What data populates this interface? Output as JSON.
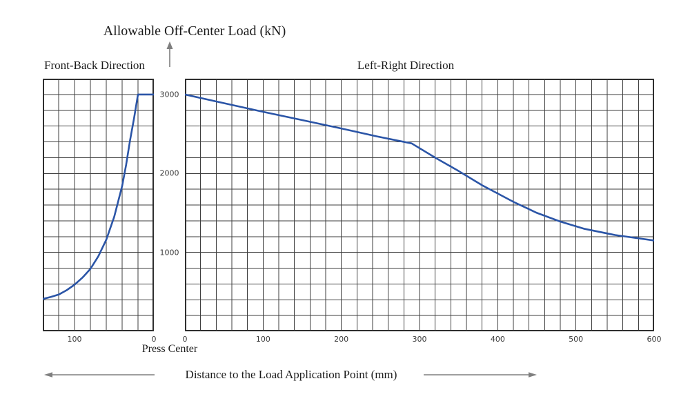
{
  "title": "Allowable Off-Center Load (kN)",
  "labels": {
    "press_center": "Press Center",
    "x_axis_title": "Distance to the Load Application Point (mm)"
  },
  "colors": {
    "curve": "#2b55a7",
    "grid": "#3e3e3e",
    "frame": "#2f2f2f",
    "arrow": "#7f7f7f",
    "text": "#1b1b1b",
    "tick_text": "#3a3a3a",
    "background": "#ffffff"
  },
  "chart_data": [
    {
      "type": "line",
      "name": "front-back-direction",
      "title": "Front-Back Direction",
      "xlabel": "Distance to the Load Application Point (mm)",
      "ylabel": "Allowable Off-Center Load (kN)",
      "x_direction": "reversed",
      "xlim": [
        0,
        140
      ],
      "ylim": [
        0,
        3200
      ],
      "grid_cells": {
        "cols": 7,
        "rows": 16
      },
      "x_ticks": [
        100,
        0
      ],
      "series": [
        {
          "name": "allowable-load",
          "points": [
            [
              140,
              410
            ],
            [
              130,
              435
            ],
            [
              120,
              465
            ],
            [
              110,
              520
            ],
            [
              100,
              590
            ],
            [
              90,
              680
            ],
            [
              80,
              790
            ],
            [
              70,
              950
            ],
            [
              60,
              1160
            ],
            [
              50,
              1450
            ],
            [
              40,
              1840
            ],
            [
              35,
              2110
            ],
            [
              30,
              2420
            ],
            [
              25,
              2700
            ],
            [
              22,
              2880
            ],
            [
              20,
              3000
            ],
            [
              0,
              3000
            ]
          ]
        }
      ]
    },
    {
      "type": "line",
      "name": "left-right-direction",
      "title": "Left-Right Direction",
      "xlabel": "Distance to the Load Application Point (mm)",
      "ylabel": "Allowable Off-Center Load (kN)",
      "x_direction": "normal",
      "xlim": [
        0,
        600
      ],
      "ylim": [
        0,
        3200
      ],
      "grid_cells": {
        "cols": 30,
        "rows": 16
      },
      "x_ticks": [
        0,
        100,
        200,
        300,
        400,
        500,
        600
      ],
      "y_ticks": [
        3000,
        2000,
        1000
      ],
      "series": [
        {
          "name": "allowable-load",
          "points": [
            [
              0,
              3000
            ],
            [
              50,
              2890
            ],
            [
              100,
              2780
            ],
            [
              150,
              2675
            ],
            [
              200,
              2570
            ],
            [
              245,
              2470
            ],
            [
              290,
              2380
            ],
            [
              320,
              2200
            ],
            [
              350,
              2030
            ],
            [
              380,
              1850
            ],
            [
              420,
              1640
            ],
            [
              450,
              1500
            ],
            [
              480,
              1390
            ],
            [
              510,
              1300
            ],
            [
              550,
              1220
            ],
            [
              600,
              1150
            ]
          ]
        }
      ]
    }
  ]
}
